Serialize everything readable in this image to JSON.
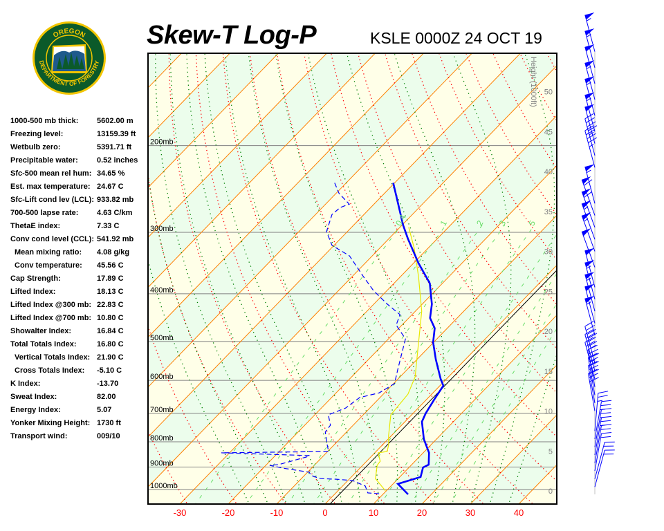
{
  "logo": {
    "text_top": "OREGON",
    "text_bottom": "DEPARTMENT OF FORESTRY"
  },
  "header": {
    "title": "Skew-T Log-P",
    "station": "KSLE 0000Z 24 OCT 19"
  },
  "stats": [
    {
      "label": "1000-500 mb thick:",
      "value": "5602.00 m"
    },
    {
      "label": "Freezing level:",
      "value": "13159.39 ft"
    },
    {
      "label": "Wetbulb zero:",
      "value": "5391.71 ft"
    },
    {
      "label": "Precipitable water:",
      "value": "0.52 inches"
    },
    {
      "label": "Sfc-500 mean rel hum:",
      "value": "34.65 %"
    },
    {
      "label": "Est. max temperature:",
      "value": "24.67 C"
    },
    {
      "label": "Sfc-Lift cond lev (LCL):",
      "value": "933.82 mb"
    },
    {
      "label": "700-500 lapse rate:",
      "value": "4.63 C/km"
    },
    {
      "label": "ThetaE index:",
      "value": "7.33 C"
    },
    {
      "label": "Conv cond level (CCL):",
      "value": "541.92 mb"
    },
    {
      "label": "Mean mixing ratio:",
      "value": "4.08 g/kg",
      "indent": true
    },
    {
      "label": "Conv temperature:",
      "value": "45.56 C",
      "indent": true
    },
    {
      "label": "Cap Strength:",
      "value": "17.89 C"
    },
    {
      "label": "Lifted Index:",
      "value": "18.13 C"
    },
    {
      "label": "Lifted Index @300 mb:",
      "value": "22.83 C"
    },
    {
      "label": "Lifted Index @700 mb:",
      "value": "10.80 C"
    },
    {
      "label": "Showalter Index:",
      "value": "16.84 C"
    },
    {
      "label": "Total Totals Index:",
      "value": "16.80 C"
    },
    {
      "label": "Vertical Totals Index:",
      "value": "21.90 C",
      "indent": true
    },
    {
      "label": "Cross Totals Index:",
      "value": "-5.10 C",
      "indent": true
    },
    {
      "label": "K Index:",
      "value": "-13.70"
    },
    {
      "label": "Sweat Index:",
      "value": "82.00"
    },
    {
      "label": "Energy Index:",
      "value": "5.07"
    },
    {
      "label": "Yonker Mixing Height:",
      "value": "1730 ft"
    },
    {
      "label": "Transport wind:",
      "value": "009/10"
    }
  ],
  "chart_data": {
    "type": "skew-t",
    "title": "Skew-T Log-P",
    "subtitle": "KSLE 0000Z 24 OCT 19",
    "pressure_range_mb": [
      1050,
      130
    ],
    "temperature_ticks_c": [
      -30,
      -20,
      -10,
      0,
      10,
      20,
      30,
      40
    ],
    "isobars": [
      {
        "p": 200,
        "label": "200mb"
      },
      {
        "p": 300,
        "label": "300mb"
      },
      {
        "p": 400,
        "label": "400mb"
      },
      {
        "p": 500,
        "label": "500mb"
      },
      {
        "p": 600,
        "label": "600mb"
      },
      {
        "p": 700,
        "label": "700mb"
      },
      {
        "p": 800,
        "label": "800mb"
      },
      {
        "p": 900,
        "label": "900mb"
      },
      {
        "p": 1000,
        "label": "1000mb"
      }
    ],
    "height_axis": {
      "label": "Height (1000ft)",
      "ticks": [
        0,
        5,
        10,
        15,
        20,
        25,
        30,
        35,
        40,
        45,
        50
      ]
    },
    "mixing_ratio_labels": [
      {
        "w": 0.4,
        "label": "0.4"
      },
      {
        "w": 1,
        "label": "1"
      },
      {
        "w": 2,
        "label": "2"
      },
      {
        "w": 3,
        "label": "3"
      },
      {
        "w": 5,
        "label": "5"
      }
    ],
    "colors": {
      "temperature": "#0000ff",
      "dewpoint": "#0000ff",
      "parcel": "#e8e800",
      "isotherm": "#ff8000",
      "zero_isotherm": "#000000",
      "dry_adiabat": "#ff0000",
      "moist_adiabat": "#008000",
      "mixing_ratio": "#66dd66",
      "temp_tick": "#ff0000",
      "band_a": "#ffffe8",
      "band_b": "#ecfdec"
    },
    "temperature": [
      [
        1023,
        15.2
      ],
      [
        974,
        11.0
      ],
      [
        943,
        14.3
      ],
      [
        902,
        12.9
      ],
      [
        890,
        13.5
      ],
      [
        842,
        11.2
      ],
      [
        790,
        7.4
      ],
      [
        728,
        3.5
      ],
      [
        700,
        2.6
      ],
      [
        656,
        1.6
      ],
      [
        615,
        0.7
      ],
      [
        596,
        -1.2
      ],
      [
        544,
        -6.1
      ],
      [
        502,
        -10.1
      ],
      [
        470,
        -12.6
      ],
      [
        448,
        -15.6
      ],
      [
        420,
        -18.0
      ],
      [
        381,
        -22.6
      ],
      [
        346,
        -29.1
      ],
      [
        309,
        -36.1
      ],
      [
        290,
        -39.8
      ],
      [
        238,
        -50.3
      ]
    ],
    "dewpoint": [
      [
        1020,
        9.1
      ],
      [
        1016,
        6.6
      ],
      [
        984,
        4.7
      ],
      [
        959,
        1.0
      ],
      [
        953,
        -2.6
      ],
      [
        950,
        -6.1
      ],
      [
        937,
        -8.5
      ],
      [
        922,
        -9.7
      ],
      [
        905,
        -15.8
      ],
      [
        893,
        -19.2
      ],
      [
        890,
        -17.5
      ],
      [
        859,
        -13.3
      ],
      [
        853,
        -12.9
      ],
      [
        842,
        -31.7
      ],
      [
        837,
        -9.8
      ],
      [
        810,
        -11.5
      ],
      [
        764,
        -14.4
      ],
      [
        740,
        -14.7
      ],
      [
        705,
        -17.2
      ],
      [
        683,
        -15.0
      ],
      [
        650,
        -14.2
      ],
      [
        636,
        -11.1
      ],
      [
        609,
        -9.8
      ],
      [
        571,
        -11.9
      ],
      [
        494,
        -16.5
      ],
      [
        463,
        -21.2
      ],
      [
        441,
        -22.5
      ],
      [
        420,
        -27.2
      ],
      [
        394,
        -32.8
      ],
      [
        369,
        -37.7
      ],
      [
        335,
        -44.7
      ],
      [
        319,
        -50.4
      ],
      [
        299,
        -54.3
      ],
      [
        276,
        -56.6
      ],
      [
        267,
        -56.3
      ],
      [
        263,
        -55.1
      ],
      [
        250,
        -59.4
      ],
      [
        238,
        -62.4
      ]
    ],
    "wetbulb_or_parcel": [
      [
        1006,
        9.8
      ],
      [
        950,
        5.3
      ],
      [
        893,
        3.0
      ],
      [
        876,
        2.8
      ],
      [
        842,
        0.7
      ],
      [
        837,
        2.3
      ],
      [
        810,
        1.2
      ],
      [
        777,
        -0.6
      ],
      [
        705,
        -4.3
      ],
      [
        640,
        -4.9
      ],
      [
        590,
        -6.9
      ],
      [
        510,
        -12.5
      ],
      [
        434,
        -18.7
      ],
      [
        369,
        -26.3
      ],
      [
        323,
        -32.9
      ],
      [
        293,
        -38.2
      ]
    ],
    "wind_barbs": [
      {
        "h": 0.5,
        "dir": 15,
        "spd": 20
      },
      {
        "h": 1.5,
        "dir": 15,
        "spd": 20
      },
      {
        "h": 2.5,
        "dir": 10,
        "spd": 20
      },
      {
        "h": 3.5,
        "dir": 10,
        "spd": 20
      },
      {
        "h": 4.5,
        "dir": 10,
        "spd": 25
      },
      {
        "h": 5.5,
        "dir": 10,
        "spd": 25
      },
      {
        "h": 6.5,
        "dir": 10,
        "spd": 25
      },
      {
        "h": 7.5,
        "dir": 5,
        "spd": 25
      },
      {
        "h": 10,
        "dir": 350,
        "spd": 30
      },
      {
        "h": 11,
        "dir": 350,
        "spd": 30
      },
      {
        "h": 12,
        "dir": 350,
        "spd": 30
      },
      {
        "h": 13,
        "dir": 350,
        "spd": 35
      },
      {
        "h": 14,
        "dir": 345,
        "spd": 35
      },
      {
        "h": 15,
        "dir": 345,
        "spd": 40
      },
      {
        "h": 16,
        "dir": 345,
        "spd": 40
      },
      {
        "h": 19.5,
        "dir": 345,
        "spd": 55
      },
      {
        "h": 21,
        "dir": 345,
        "spd": 50
      },
      {
        "h": 22.5,
        "dir": 345,
        "spd": 55
      },
      {
        "h": 24,
        "dir": 345,
        "spd": 55
      },
      {
        "h": 25.5,
        "dir": 345,
        "spd": 50
      },
      {
        "h": 28,
        "dir": 340,
        "spd": 50
      },
      {
        "h": 30,
        "dir": 340,
        "spd": 55
      },
      {
        "h": 31.5,
        "dir": 340,
        "spd": 55
      },
      {
        "h": 33,
        "dir": 340,
        "spd": 60
      },
      {
        "h": 34.5,
        "dir": 340,
        "spd": 60
      },
      {
        "h": 36,
        "dir": 345,
        "spd": 55
      },
      {
        "h": 40.5,
        "dir": 345,
        "spd": 45
      },
      {
        "h": 42,
        "dir": 345,
        "spd": 45
      },
      {
        "h": 43.5,
        "dir": 345,
        "spd": 50
      },
      {
        "h": 45,
        "dir": 345,
        "spd": 55
      },
      {
        "h": 47,
        "dir": 345,
        "spd": 55
      },
      {
        "h": 49,
        "dir": 345,
        "spd": 55
      },
      {
        "h": 51,
        "dir": 345,
        "spd": 50
      },
      {
        "h": 53,
        "dir": 345,
        "spd": 55
      },
      {
        "h": 55,
        "dir": 345,
        "spd": 55
      }
    ]
  }
}
